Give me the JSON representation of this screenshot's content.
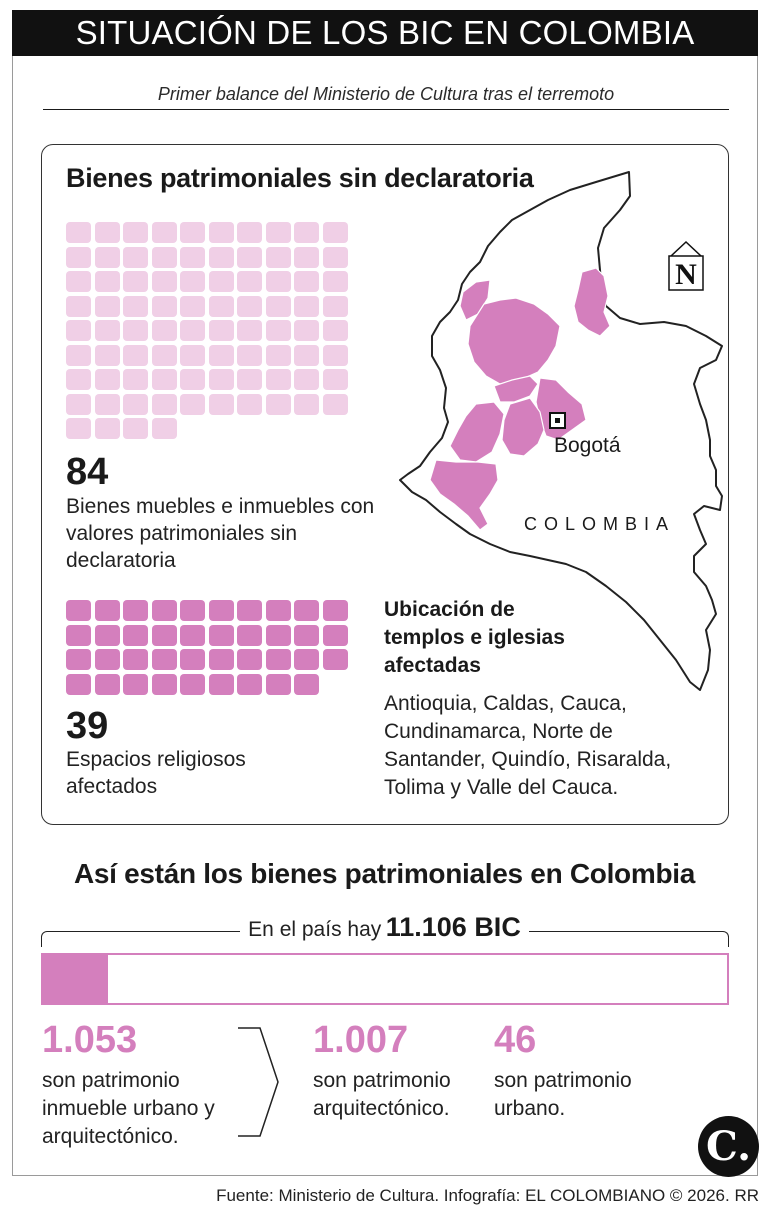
{
  "header": {
    "title": "SITUACIÓN DE LOS BIC EN COLOMBIA",
    "subtitle": "Primer balance del Ministerio de Cultura tras el terremoto"
  },
  "panel": {
    "title": "Bienes patrimoniales sin declaratoria",
    "stat_a": {
      "value": "84",
      "label": "Bienes muebles e inmuebles con valores patrimoniales sin declaratoria",
      "count": 84,
      "color": "#f0cfe6"
    },
    "stat_b": {
      "value": "39",
      "label": "Espacios religiosos afectados",
      "count": 39,
      "color": "#d47fbd"
    },
    "map": {
      "city": "Bogotá",
      "country": "COLOMBIA",
      "north": "N",
      "highlight_color": "#d47fbd"
    },
    "location": {
      "title": "Ubicación de templos e iglesias afectadas",
      "text": "Antioquia, Caldas, Cauca, Cundinamarca, Norte de Santander, Quindío, Risaralda, Tolima y Valle del Cauca."
    }
  },
  "national": {
    "title": "Así están los bienes patrimoniales en Colombia",
    "total_prefix": "En el país hay",
    "total_value": "11.106 BIC",
    "total": 11106,
    "highlight": 1053,
    "stats": [
      {
        "value": "1.053",
        "label": "son patrimonio inmueble urbano y arquitectónico."
      },
      {
        "value": "1.007",
        "label": "son patrimonio arquitectónico."
      },
      {
        "value": "46",
        "label": "son patrimonio urbano."
      }
    ],
    "accent": "#d47fbd"
  },
  "logo": {
    "text": "C."
  },
  "footer": {
    "text": "Fuente: Ministerio de Cultura. Infografía: EL COLOMBIANO © 2026. RR"
  }
}
